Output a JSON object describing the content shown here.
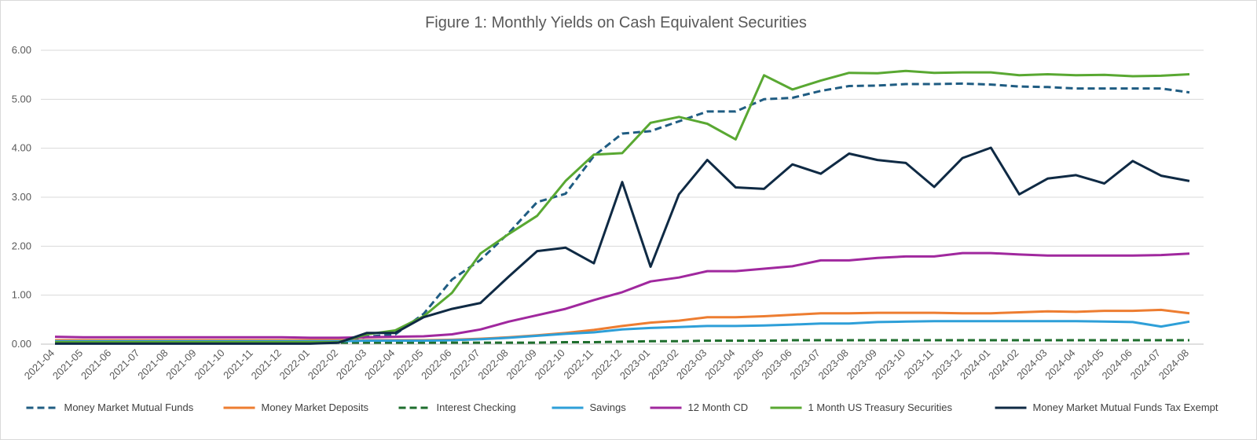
{
  "chart_data": {
    "type": "line",
    "title": "Figure 1:  Monthly Yields on Cash Equivalent Securities",
    "xlabel": "",
    "ylabel": "",
    "ylim": [
      0,
      6
    ],
    "yticks": [
      "0.00",
      "1.00",
      "2.00",
      "3.00",
      "4.00",
      "5.00",
      "6.00"
    ],
    "grid": true,
    "legend_position": "bottom",
    "categories": [
      "2021-04",
      "2021-05",
      "2021-06",
      "2021-07",
      "2021-08",
      "2021-09",
      "2021-10",
      "2021-11",
      "2021-12",
      "2022-01",
      "2022-02",
      "2022-03",
      "2022-04",
      "2022-05",
      "2022-06",
      "2022-07",
      "2022-08",
      "2022-09",
      "2022-10",
      "2022-11",
      "2022-12",
      "2023-01",
      "2023-02",
      "2023-03",
      "2023-04",
      "2023-05",
      "2023-06",
      "2023-07",
      "2023-08",
      "2023-09",
      "2023-10",
      "2023-11",
      "2023-12",
      "2024-01",
      "2024-02",
      "2024-03",
      "2024-04",
      "2024-05",
      "2024-06",
      "2024-07",
      "2024-08"
    ],
    "series": [
      {
        "name": "Money Market Mutual Funds",
        "color": "#1f5c82",
        "dash": "dashed",
        "values": [
          0.03,
          0.03,
          0.03,
          0.03,
          0.03,
          0.03,
          0.03,
          0.03,
          0.03,
          0.03,
          0.03,
          0.15,
          0.2,
          0.62,
          1.32,
          1.72,
          2.27,
          2.9,
          3.07,
          3.84,
          4.3,
          4.35,
          4.55,
          4.75,
          4.75,
          5.0,
          5.03,
          5.17,
          5.27,
          5.28,
          5.31,
          5.31,
          5.32,
          5.3,
          5.26,
          5.25,
          5.22,
          5.22,
          5.22,
          5.22,
          5.14
        ]
      },
      {
        "name": "Money Market Deposits",
        "color": "#ed7d31",
        "dash": "solid",
        "values": [
          0.08,
          0.08,
          0.08,
          0.08,
          0.08,
          0.08,
          0.08,
          0.08,
          0.08,
          0.08,
          0.08,
          0.08,
          0.08,
          0.08,
          0.09,
          0.11,
          0.14,
          0.18,
          0.23,
          0.29,
          0.37,
          0.44,
          0.48,
          0.55,
          0.55,
          0.57,
          0.6,
          0.63,
          0.63,
          0.64,
          0.64,
          0.64,
          0.63,
          0.63,
          0.65,
          0.67,
          0.66,
          0.68,
          0.68,
          0.7,
          0.63
        ]
      },
      {
        "name": "Interest Checking",
        "color": "#1e6e2d",
        "dash": "dashed",
        "values": [
          0.03,
          0.03,
          0.03,
          0.03,
          0.03,
          0.03,
          0.03,
          0.03,
          0.03,
          0.03,
          0.03,
          0.03,
          0.03,
          0.03,
          0.03,
          0.03,
          0.03,
          0.03,
          0.04,
          0.04,
          0.05,
          0.06,
          0.06,
          0.07,
          0.07,
          0.07,
          0.08,
          0.08,
          0.08,
          0.08,
          0.08,
          0.08,
          0.08,
          0.08,
          0.08,
          0.08,
          0.08,
          0.08,
          0.08,
          0.08,
          0.08
        ]
      },
      {
        "name": "Savings",
        "color": "#2e9fd8",
        "dash": "solid",
        "values": [
          0.06,
          0.06,
          0.06,
          0.06,
          0.06,
          0.06,
          0.06,
          0.06,
          0.06,
          0.06,
          0.06,
          0.07,
          0.07,
          0.07,
          0.08,
          0.1,
          0.13,
          0.17,
          0.21,
          0.24,
          0.3,
          0.33,
          0.35,
          0.37,
          0.37,
          0.38,
          0.4,
          0.42,
          0.42,
          0.45,
          0.46,
          0.47,
          0.47,
          0.47,
          0.47,
          0.47,
          0.47,
          0.46,
          0.45,
          0.36,
          0.46
        ]
      },
      {
        "name": "12 Month CD",
        "color": "#a0289e",
        "dash": "solid",
        "values": [
          0.15,
          0.14,
          0.14,
          0.14,
          0.14,
          0.14,
          0.14,
          0.14,
          0.14,
          0.13,
          0.13,
          0.14,
          0.15,
          0.16,
          0.2,
          0.3,
          0.46,
          0.59,
          0.72,
          0.9,
          1.06,
          1.28,
          1.36,
          1.49,
          1.49,
          1.54,
          1.59,
          1.71,
          1.71,
          1.76,
          1.79,
          1.79,
          1.86,
          1.86,
          1.83,
          1.81,
          1.81,
          1.81,
          1.81,
          1.82,
          1.85
        ]
      },
      {
        "name": "1 Month US Treasury Securities",
        "color": "#59a832",
        "dash": "solid",
        "values": [
          0.04,
          0.04,
          0.04,
          0.04,
          0.04,
          0.04,
          0.04,
          0.04,
          0.04,
          0.04,
          0.04,
          0.2,
          0.28,
          0.57,
          1.05,
          1.85,
          2.25,
          2.62,
          3.33,
          3.87,
          3.9,
          4.52,
          4.64,
          4.5,
          4.18,
          5.49,
          5.2,
          5.38,
          5.54,
          5.53,
          5.58,
          5.54,
          5.55,
          5.55,
          5.49,
          5.51,
          5.49,
          5.5,
          5.47,
          5.48,
          5.51
        ]
      },
      {
        "name": "Money Market Mutual Funds Tax Exempt",
        "color": "#0f2a44",
        "dash": "solid",
        "values": [
          0.01,
          0.01,
          0.01,
          0.01,
          0.01,
          0.01,
          0.01,
          0.01,
          0.01,
          0.01,
          0.03,
          0.23,
          0.23,
          0.55,
          0.72,
          0.84,
          1.38,
          1.9,
          1.97,
          1.65,
          3.31,
          1.58,
          3.06,
          3.76,
          3.2,
          3.17,
          3.67,
          3.48,
          3.89,
          3.76,
          3.7,
          3.21,
          3.8,
          4.01,
          3.06,
          3.38,
          3.45,
          3.28,
          3.74,
          3.44,
          3.33
        ]
      }
    ]
  }
}
